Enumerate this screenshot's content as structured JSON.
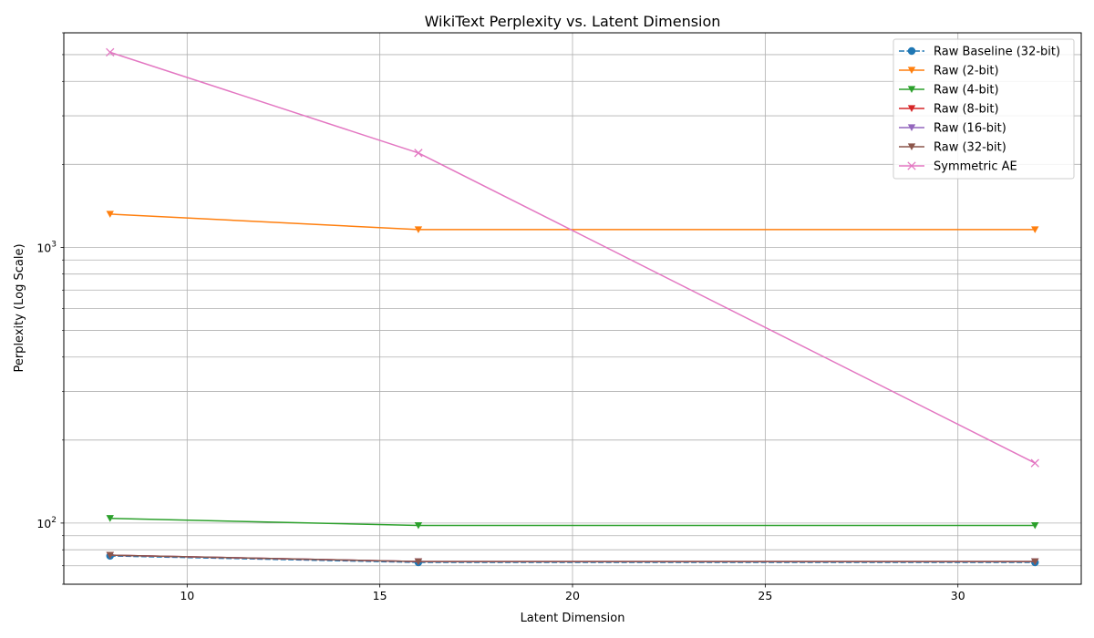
{
  "chart_data": {
    "type": "line",
    "title": "WikiText Perplexity vs. Latent Dimension",
    "xlabel": "Latent Dimension",
    "ylabel": "Perplexity (Log Scale)",
    "y_scale": "log",
    "xlim": [
      6.8,
      33.2
    ],
    "ylim": [
      60,
      6000
    ],
    "grid": true,
    "grid_minor_y": true,
    "legend_position": "top-right",
    "x_ticks": [
      10,
      15,
      20,
      25,
      30
    ],
    "x_tick_labels": [
      "10",
      "15",
      "20",
      "25",
      "30"
    ],
    "y_ticks": [
      100,
      1000
    ],
    "y_tick_base": "10",
    "y_tick_exponents": [
      "2",
      "3"
    ],
    "x": [
      8,
      16,
      32
    ],
    "series": [
      {
        "name": "Raw Baseline (32-bit)",
        "values": [
          76,
          72,
          72
        ],
        "color": "#1f77b4",
        "marker": "circle",
        "dash": true
      },
      {
        "name": "Raw (2-bit)",
        "values": [
          1320,
          1160,
          1160
        ],
        "color": "#ff7f0e",
        "marker": "triangle-down",
        "dash": false
      },
      {
        "name": "Raw (4-bit)",
        "values": [
          104,
          98,
          98
        ],
        "color": "#2ca02c",
        "marker": "triangle-down",
        "dash": false
      },
      {
        "name": "Raw (8-bit)",
        "values": [
          76.5,
          72.5,
          72.5
        ],
        "color": "#d62728",
        "marker": "triangle-down",
        "dash": false
      },
      {
        "name": "Raw (16-bit)",
        "values": [
          76.5,
          72.5,
          72.5
        ],
        "color": "#9467bd",
        "marker": "triangle-down",
        "dash": false
      },
      {
        "name": "Raw (32-bit)",
        "values": [
          76.5,
          72.5,
          72.5
        ],
        "color": "#8c564b",
        "marker": "triangle-down",
        "dash": false
      },
      {
        "name": "Symmetric AE",
        "values": [
          5100,
          2200,
          165
        ],
        "color": "#e377c2",
        "marker": "x",
        "dash": false
      }
    ]
  }
}
